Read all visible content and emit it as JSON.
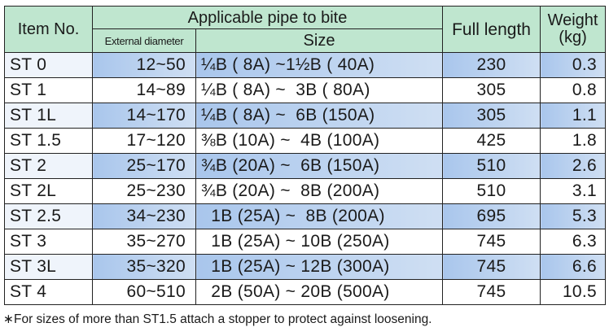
{
  "header": {
    "item_no": "Item No.",
    "applicable": "Applicable pipe to bite",
    "external_diameter": "External diameter",
    "size": "Size",
    "full_length": "Full length",
    "weight_line1": "Weight",
    "weight_line2": "(kg)"
  },
  "rows": [
    {
      "item": "ST 0",
      "ext": "12~50",
      "size": "¼B ( 8A) ~1½B ( 40A)",
      "full": "230",
      "weight": "0.3"
    },
    {
      "item": "ST 1",
      "ext": "14~89",
      "size": "¼B ( 8A) ~  3B ( 80A)",
      "full": "305",
      "weight": "0.8"
    },
    {
      "item": "ST 1L",
      "ext": "14~170",
      "size": "¼B ( 8A) ~  6B (150A)",
      "full": "305",
      "weight": "1.1"
    },
    {
      "item": "ST 1.5",
      "ext": "17~120",
      "size": "⅜B (10A) ~  4B (100A)",
      "full": "425",
      "weight": "1.8"
    },
    {
      "item": "ST 2",
      "ext": "25~170",
      "size": "¾B (20A) ~  6B (150A)",
      "full": "510",
      "weight": "2.6"
    },
    {
      "item": "ST 2L",
      "ext": "25~230",
      "size": "¾B (20A) ~  8B (200A)",
      "full": "510",
      "weight": "3.1"
    },
    {
      "item": "ST 2.5",
      "ext": "34~230",
      "size": "  1B (25A) ~  8B (200A)",
      "full": "695",
      "weight": "5.3"
    },
    {
      "item": "ST 3",
      "ext": "35~270",
      "size": "  1B (25A) ~ 10B (250A)",
      "full": "745",
      "weight": "6.3"
    },
    {
      "item": "ST 3L",
      "ext": "35~320",
      "size": "  1B (25A) ~ 12B (300A)",
      "full": "745",
      "weight": "6.6"
    },
    {
      "item": "ST 4",
      "ext": "60~510",
      "size": "  2B (50A) ~ 20B (500A)",
      "full": "745",
      "weight": "10.5"
    }
  ],
  "footnote": "∗For sizes of more than ST1.5 attach a stopper to protect against loosening.",
  "colors": {
    "header_green": "#bfe6cf",
    "row_blue": "#a9c6ec",
    "border": "#222222"
  }
}
